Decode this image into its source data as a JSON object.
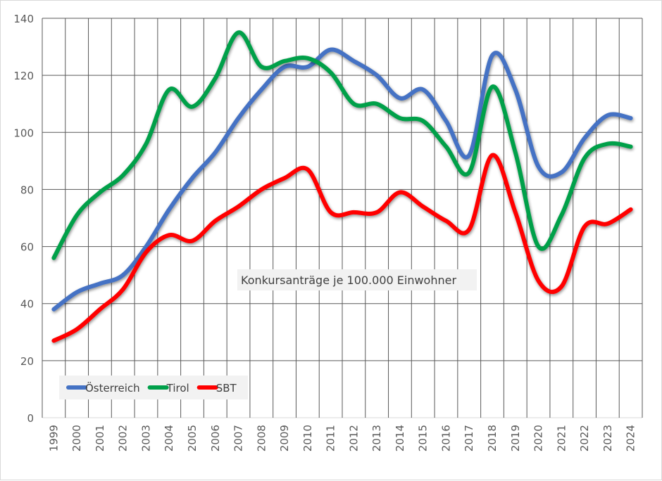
{
  "chart_data": {
    "type": "line",
    "title": "",
    "annotation": "Konkursanträge je 100.000 Einwohner",
    "xlabel": "",
    "ylabel": "",
    "ylim": [
      0,
      140
    ],
    "yticks": [
      "0",
      "20",
      "40",
      "60",
      "80",
      "100",
      "120",
      "140"
    ],
    "grid": true,
    "legend_position": "bottom-left",
    "categories": [
      "1999",
      "2000",
      "2001",
      "2002",
      "2003",
      "2004",
      "2005",
      "2006",
      "2007",
      "2008",
      "2009",
      "2010",
      "2011",
      "2012",
      "2013",
      "2014",
      "2015",
      "2016",
      "2017",
      "2018",
      "2019",
      "2020",
      "2021",
      "2022",
      "2023",
      "2024"
    ],
    "series": [
      {
        "name": "Österreich",
        "color": "#4472C4",
        "values": [
          38,
          44,
          47,
          50,
          60,
          73,
          84,
          93,
          105,
          115,
          123,
          123,
          129,
          125,
          120,
          112,
          115,
          104,
          92,
          127,
          115,
          88,
          86,
          98,
          106,
          105
        ]
      },
      {
        "name": "Tirol",
        "color": "#00A04A",
        "values": [
          56,
          71,
          79,
          85,
          96,
          115,
          109,
          119,
          135,
          123,
          125,
          126,
          121,
          110,
          110,
          105,
          104,
          95,
          86,
          116,
          93,
          60,
          71,
          91,
          96,
          95
        ]
      },
      {
        "name": "SBT",
        "color": "#FF0000",
        "values": [
          27,
          31,
          38,
          45,
          58,
          64,
          62,
          69,
          74,
          80,
          84,
          87,
          72,
          72,
          72,
          79,
          74,
          69,
          66,
          92,
          72,
          48,
          46,
          67,
          68,
          73
        ]
      }
    ]
  }
}
